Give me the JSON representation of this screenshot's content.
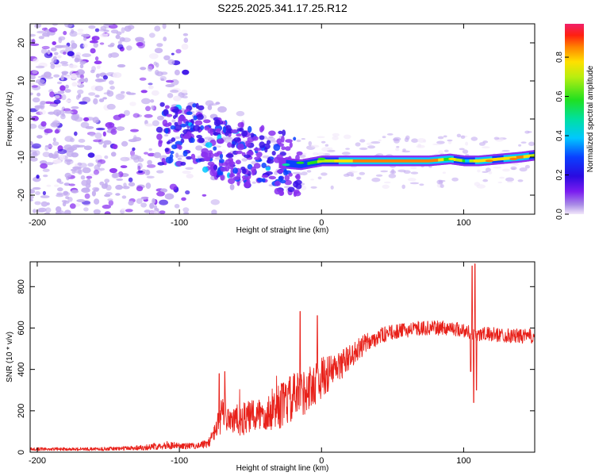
{
  "title": "S225.2025.341.17.25.R12",
  "chart_data": [
    {
      "type": "heatmap",
      "xlabel": "Height of straight line (km)",
      "ylabel": "Frequency (Hz)",
      "xlim": [
        -205,
        150
      ],
      "ylim": [
        -25,
        25
      ],
      "x_ticks": [
        -200,
        -100,
        0,
        100
      ],
      "y_ticks": [
        -20,
        -10,
        0,
        10,
        20
      ],
      "colorbar": {
        "label": "Normalized spectral amplitude",
        "range": [
          0,
          0.97
        ],
        "ticks": [
          0.0,
          0.2,
          0.4,
          0.6,
          0.8
        ],
        "tick_labels": [
          "0.0",
          "0.2",
          "0.4",
          "0.6",
          "0.8"
        ]
      },
      "ridge": {
        "description_x": [
          -90,
          -75,
          -60,
          -45,
          -30,
          -15,
          0,
          25,
          50,
          75,
          90,
          100,
          110,
          125,
          140,
          150
        ],
        "frequency_hz": [
          -4,
          -7,
          -9,
          -10,
          -11.5,
          -12,
          -11,
          -11,
          -11,
          -11,
          -10.5,
          -11,
          -11,
          -10.5,
          -10,
          -9.5
        ],
        "amplitude": [
          0.25,
          0.3,
          0.3,
          0.3,
          0.35,
          0.45,
          0.6,
          0.75,
          0.75,
          0.75,
          0.7,
          0.55,
          0.7,
          0.65,
          0.75,
          0.6
        ]
      }
    },
    {
      "type": "line",
      "xlabel": "Height of straight line (km)",
      "ylabel": "SNR (10 * v/v)",
      "xlim": [
        -205,
        150
      ],
      "ylim": [
        0,
        920
      ],
      "x_ticks": [
        -200,
        -100,
        0,
        100
      ],
      "y_ticks": [
        0,
        200,
        400,
        600,
        800
      ],
      "series": [
        {
          "name": "SNR",
          "color": "#e8211a",
          "x": [
            -205,
            -180,
            -160,
            -140,
            -120,
            -110,
            -100,
            -90,
            -80,
            -75,
            -70,
            -65,
            -60,
            -50,
            -40,
            -30,
            -20,
            -10,
            0,
            10,
            20,
            30,
            40,
            50,
            60,
            70,
            80,
            90,
            100,
            104,
            106,
            108,
            110,
            120,
            130,
            140,
            150
          ],
          "mean": [
            15,
            15,
            15,
            18,
            25,
            35,
            30,
            30,
            40,
            100,
            180,
            170,
            150,
            170,
            190,
            220,
            260,
            300,
            360,
            400,
            460,
            520,
            560,
            580,
            590,
            600,
            600,
            600,
            590,
            580,
            560,
            580,
            570,
            570,
            565,
            560,
            560
          ],
          "noise": [
            8,
            8,
            8,
            10,
            15,
            20,
            15,
            15,
            20,
            40,
            90,
            80,
            80,
            80,
            90,
            110,
            120,
            110,
            100,
            80,
            60,
            50,
            40,
            35,
            35,
            35,
            35,
            35,
            35,
            35,
            35,
            35,
            35,
            35,
            35,
            35,
            35
          ],
          "spikes": [
            {
              "x": -72,
              "y": 380
            },
            {
              "x": -68,
              "y": 390
            },
            {
              "x": -15,
              "y": 680
            },
            {
              "x": -3,
              "y": 660
            },
            {
              "x": 105,
              "y": 390
            },
            {
              "x": 106,
              "y": 900
            },
            {
              "x": 107,
              "y": 240
            },
            {
              "x": 108,
              "y": 910
            },
            {
              "x": 109,
              "y": 300
            }
          ]
        }
      ]
    }
  ]
}
